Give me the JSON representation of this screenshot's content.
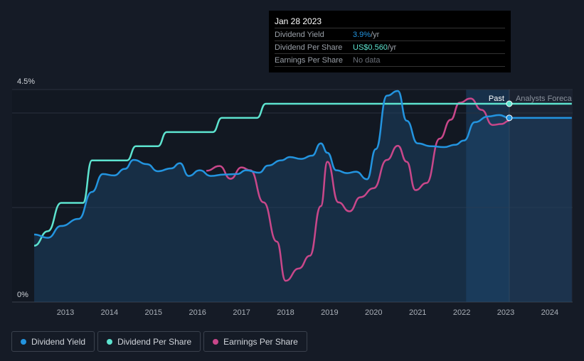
{
  "tooltip": {
    "date": "Jan 28 2023",
    "rows": [
      {
        "label": "Dividend Yield",
        "value": "3.9%",
        "unit": " /yr",
        "color": "#2394df"
      },
      {
        "label": "Dividend Per Share",
        "value": "US$0.560",
        "unit": " /yr",
        "color": "#5de3cf"
      },
      {
        "label": "Earnings Per Share",
        "value": "No data",
        "unit": "",
        "color": "#6b7079"
      }
    ]
  },
  "labels": {
    "past": "Past",
    "forecast": "Analysts Foreca"
  },
  "legend": [
    {
      "label": "Dividend Yield",
      "color": "#2394df"
    },
    {
      "label": "Dividend Per Share",
      "color": "#5de3cf"
    },
    {
      "label": "Earnings Per Share",
      "color": "#c9478a"
    }
  ],
  "chart_data": {
    "type": "line",
    "y_ticks": [
      "4.5%",
      "0%"
    ],
    "ylim": [
      0,
      4.5
    ],
    "x_ticks": [
      "2013",
      "2014",
      "2015",
      "2016",
      "2017",
      "2018",
      "2019",
      "2020",
      "2021",
      "2022",
      "2023",
      "2024"
    ],
    "xlim": [
      2012.3,
      2024.5
    ],
    "forecast_start": 2023.08,
    "series": [
      {
        "name": "Dividend Yield",
        "unit": "%",
        "color": "#2394df",
        "points": [
          [
            2012.29,
            1.43
          ],
          [
            2012.6,
            1.36
          ],
          [
            2012.9,
            1.61
          ],
          [
            2013.3,
            1.76
          ],
          [
            2013.6,
            2.33
          ],
          [
            2013.85,
            2.71
          ],
          [
            2014.1,
            2.68
          ],
          [
            2014.35,
            2.82
          ],
          [
            2014.55,
            3.01
          ],
          [
            2014.85,
            2.92
          ],
          [
            2015.1,
            2.77
          ],
          [
            2015.4,
            2.83
          ],
          [
            2015.6,
            2.94
          ],
          [
            2015.8,
            2.67
          ],
          [
            2016.05,
            2.79
          ],
          [
            2016.3,
            2.67
          ],
          [
            2016.6,
            2.7
          ],
          [
            2016.9,
            2.71
          ],
          [
            2017.1,
            2.79
          ],
          [
            2017.4,
            2.74
          ],
          [
            2017.6,
            2.89
          ],
          [
            2017.9,
            3.0
          ],
          [
            2018.1,
            3.07
          ],
          [
            2018.35,
            3.03
          ],
          [
            2018.6,
            3.1
          ],
          [
            2018.8,
            3.36
          ],
          [
            2018.95,
            3.16
          ],
          [
            2019.15,
            2.79
          ],
          [
            2019.4,
            2.73
          ],
          [
            2019.6,
            2.76
          ],
          [
            2019.85,
            2.6
          ],
          [
            2020.05,
            3.24
          ],
          [
            2020.3,
            4.37
          ],
          [
            2020.55,
            4.47
          ],
          [
            2020.75,
            3.84
          ],
          [
            2021.0,
            3.36
          ],
          [
            2021.3,
            3.3
          ],
          [
            2021.6,
            3.28
          ],
          [
            2021.85,
            3.33
          ],
          [
            2022.05,
            3.42
          ],
          [
            2022.3,
            3.81
          ],
          [
            2022.6,
            3.93
          ],
          [
            2022.85,
            3.96
          ],
          [
            2023.08,
            3.9
          ],
          [
            2024.5,
            3.9
          ]
        ]
      },
      {
        "name": "Dividend Per Share",
        "unit": "USD",
        "color": "#5de3cf",
        "points": [
          [
            2012.29,
            0.159
          ],
          [
            2012.6,
            0.2
          ],
          [
            2012.9,
            0.28
          ],
          [
            2013.4,
            0.28
          ],
          [
            2013.6,
            0.4
          ],
          [
            2014.4,
            0.4
          ],
          [
            2014.6,
            0.44
          ],
          [
            2015.1,
            0.44
          ],
          [
            2015.3,
            0.48
          ],
          [
            2016.35,
            0.48
          ],
          [
            2016.55,
            0.52
          ],
          [
            2017.35,
            0.52
          ],
          [
            2017.55,
            0.56
          ],
          [
            2023.08,
            0.56
          ],
          [
            2024.5,
            0.56
          ]
        ]
      },
      {
        "name": "Earnings Per Share",
        "unit": "relative",
        "color": "#c9478a",
        "points": [
          [
            2016.2,
            2.78
          ],
          [
            2016.5,
            2.88
          ],
          [
            2016.75,
            2.61
          ],
          [
            2017.0,
            2.85
          ],
          [
            2017.2,
            2.79
          ],
          [
            2017.5,
            2.11
          ],
          [
            2017.8,
            1.28
          ],
          [
            2018.0,
            0.45
          ],
          [
            2018.3,
            0.71
          ],
          [
            2018.55,
            0.98
          ],
          [
            2018.8,
            2.03
          ],
          [
            2018.95,
            2.97
          ],
          [
            2019.2,
            2.11
          ],
          [
            2019.45,
            1.92
          ],
          [
            2019.7,
            2.22
          ],
          [
            2020.0,
            2.41
          ],
          [
            2020.3,
            3.01
          ],
          [
            2020.55,
            3.31
          ],
          [
            2020.75,
            2.97
          ],
          [
            2020.95,
            2.37
          ],
          [
            2021.2,
            2.52
          ],
          [
            2021.5,
            3.46
          ],
          [
            2021.75,
            3.86
          ],
          [
            2021.95,
            4.22
          ],
          [
            2022.2,
            4.31
          ],
          [
            2022.45,
            4.07
          ],
          [
            2022.7,
            3.75
          ],
          [
            2022.9,
            3.77
          ],
          [
            2023.08,
            3.84
          ]
        ]
      }
    ]
  }
}
